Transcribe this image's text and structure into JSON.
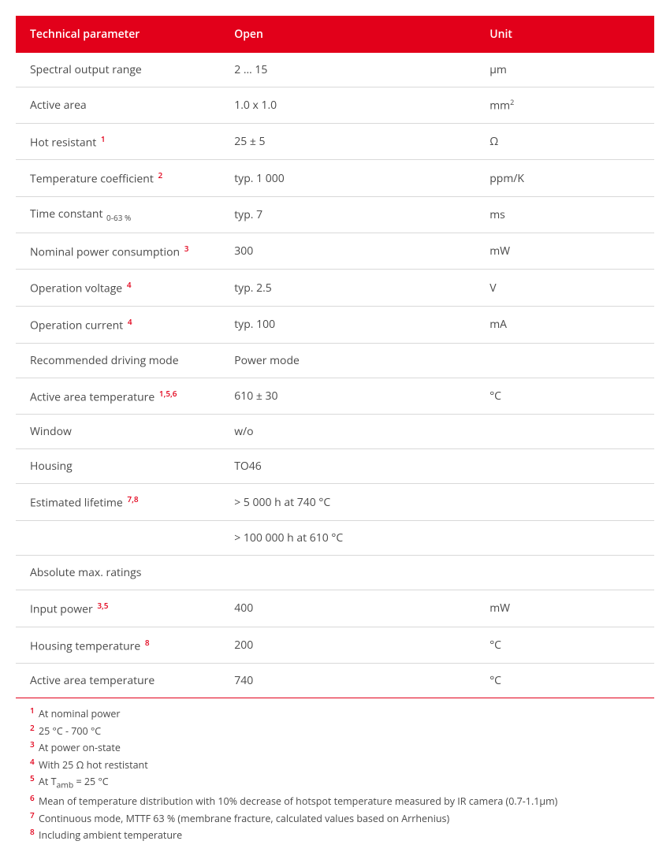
{
  "colors": {
    "brand_red": "#e2001a",
    "row_border": "#d9d9d9",
    "text": "#4a4a4a",
    "header_text": "#ffffff",
    "background": "#ffffff"
  },
  "table": {
    "columns": [
      "Technical parameter",
      "Open",
      "Unit"
    ],
    "col_widths_pct": [
      32,
      40,
      28
    ],
    "rows": [
      {
        "param": "Spectral output range",
        "fn": "",
        "sub": "",
        "value": "2 … 15",
        "unit": "µm",
        "unit_sup": ""
      },
      {
        "param": "Active area",
        "fn": "",
        "sub": "",
        "value": "1.0 x 1.0",
        "unit": "mm",
        "unit_sup": "2"
      },
      {
        "param": "Hot resistant",
        "fn": "1",
        "sub": "",
        "value": "25 ± 5",
        "unit": "Ω",
        "unit_sup": ""
      },
      {
        "param": "Temperature coefficient",
        "fn": "2",
        "sub": "",
        "value": "typ. 1 000",
        "unit": "ppm/K",
        "unit_sup": ""
      },
      {
        "param": "Time constant",
        "fn": "",
        "sub": "0-63 %",
        "value": "typ. 7",
        "unit": "ms",
        "unit_sup": ""
      },
      {
        "param": "Nominal power consumption",
        "fn": "3",
        "sub": "",
        "value": "300",
        "unit": "mW",
        "unit_sup": ""
      },
      {
        "param": "Operation voltage",
        "fn": "4",
        "sub": "",
        "value": "typ. 2.5",
        "unit": "V",
        "unit_sup": ""
      },
      {
        "param": "Operation current",
        "fn": "4",
        "sub": "",
        "value": "typ. 100",
        "unit": "mA",
        "unit_sup": ""
      },
      {
        "param": "Recommended driving mode",
        "fn": "",
        "sub": "",
        "value": "Power mode",
        "unit": "",
        "unit_sup": ""
      },
      {
        "param": "Active area temperature",
        "fn": "1,5,6",
        "sub": "",
        "value": "610 ± 30",
        "unit": "°C",
        "unit_sup": ""
      },
      {
        "param": "Window",
        "fn": "",
        "sub": "",
        "value": "w/o",
        "unit": "",
        "unit_sup": ""
      },
      {
        "param": "Housing",
        "fn": "",
        "sub": "",
        "value": "TO46",
        "unit": "",
        "unit_sup": ""
      },
      {
        "param": "Estimated lifetime",
        "fn": "7,8",
        "sub": "",
        "value": "> 5 000 h at 740 °C",
        "unit": "",
        "unit_sup": ""
      },
      {
        "param": "",
        "fn": "",
        "sub": "",
        "value": "> 100 000 h at 610 °C",
        "unit": "",
        "unit_sup": ""
      },
      {
        "param": "Absolute max. ratings",
        "fn": "",
        "sub": "",
        "value": "",
        "unit": "",
        "unit_sup": "",
        "section": true
      },
      {
        "param": "Input power",
        "fn": "3,5",
        "sub": "",
        "value": "400",
        "unit": "mW",
        "unit_sup": ""
      },
      {
        "param": "Housing temperature",
        "fn": "8",
        "sub": "",
        "value": "200",
        "unit": "°C",
        "unit_sup": ""
      },
      {
        "param": "Active area temperature",
        "fn": "",
        "sub": "",
        "value": "740",
        "unit": "°C",
        "unit_sup": "",
        "last": true
      }
    ]
  },
  "footnotes": [
    {
      "n": "1",
      "text": " At nominal power"
    },
    {
      "n": "2",
      "text": " 25 °C - 700 °C"
    },
    {
      "n": "3",
      "text": " At power on-state"
    },
    {
      "n": "4",
      "text": " With 25 Ω hot restistant"
    },
    {
      "n": "5",
      "text_pre": " At T",
      "sub": "amb",
      "text_post": " = 25 °C"
    },
    {
      "n": "6",
      "text": " Mean of temperature distribution with 10% decrease of hotspot temperature measured by IR camera (0.7-1.1µm)"
    },
    {
      "n": "7",
      "text": " Continuous mode, MTTF 63 % (membrane fracture, calculated values based on Arrhenius)"
    },
    {
      "n": "8",
      "text": " Including ambient temperature"
    }
  ]
}
